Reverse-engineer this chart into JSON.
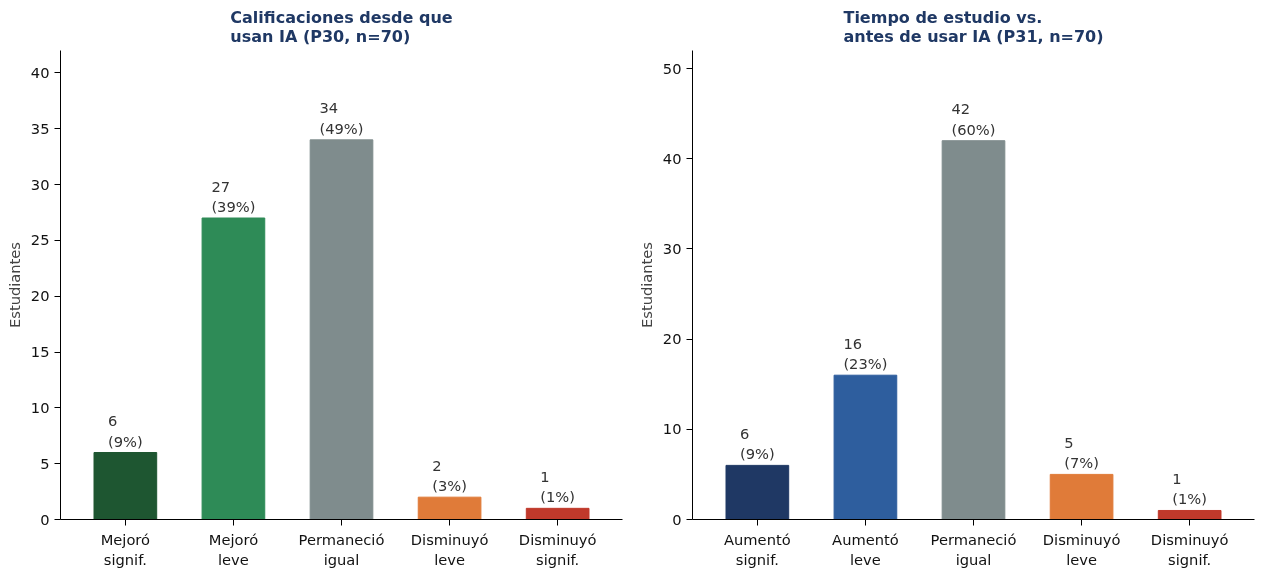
{
  "chart_data": [
    {
      "type": "bar",
      "title": "Calificaciones desde que\nusan IA (P30, n=70)",
      "ylabel": "Estudiantes",
      "categories": [
        "Mejoró signif.",
        "Mejoró leve",
        "Permaneció igual",
        "Disminuyó leve",
        "Disminuyó signif."
      ],
      "values": [
        6,
        27,
        34,
        2,
        1
      ],
      "colors": [
        "#1e5631",
        "#2e8b57",
        "#7f8c8d",
        "#e07b39",
        "#c0392b"
      ],
      "value_labels": [
        "6\n(9%)",
        "27\n(39%)",
        "34\n(49%)",
        "2\n(3%)",
        "1\n(1%)"
      ],
      "ylim": [
        0,
        42
      ],
      "yticks": [
        0,
        5,
        10,
        15,
        20,
        25,
        30,
        35,
        40
      ],
      "grid": false
    },
    {
      "type": "bar",
      "title": "Tiempo de estudio vs.\nantes de usar IA (P31, n=70)",
      "ylabel": "Estudiantes",
      "categories": [
        "Aumentó signif.",
        "Aumentó leve",
        "Permaneció igual",
        "Disminuyó leve",
        "Disminuyó signif."
      ],
      "values": [
        6,
        16,
        42,
        5,
        1
      ],
      "colors": [
        "#1f3864",
        "#2e5e9e",
        "#7f8c8d",
        "#e07b39",
        "#c0392b"
      ],
      "value_labels": [
        "6\n(9%)",
        "16\n(23%)",
        "42\n(60%)",
        "5\n(7%)",
        "1\n(1%)"
      ],
      "ylim": [
        0,
        52
      ],
      "yticks": [
        0,
        10,
        20,
        30,
        40,
        50
      ],
      "grid": false
    }
  ]
}
